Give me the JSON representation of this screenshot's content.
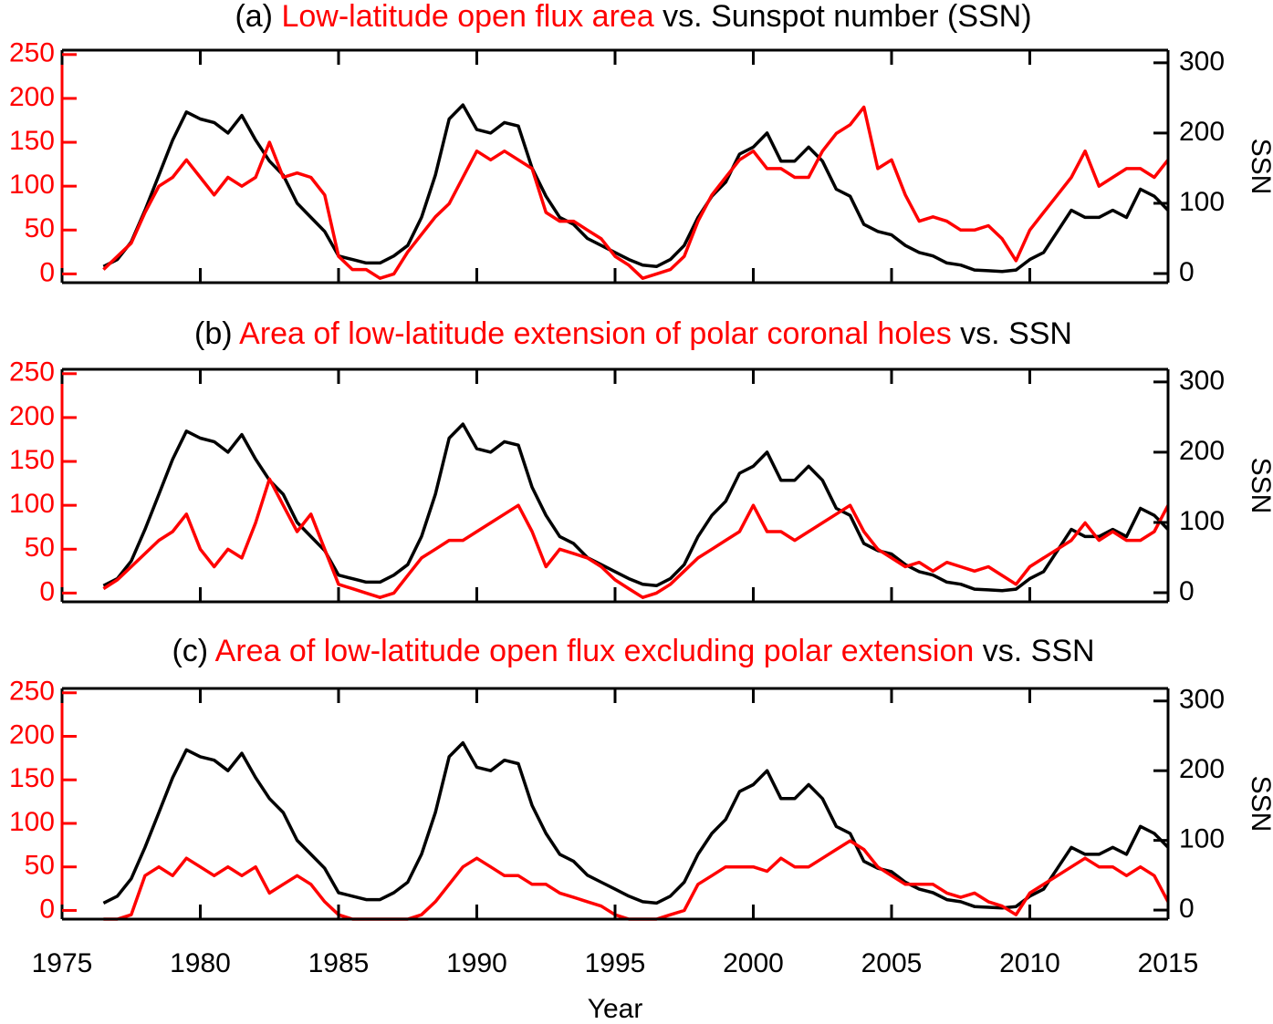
{
  "chart_data": [
    {
      "type": "line",
      "title": [
        {
          "text": "(a)",
          "color": "#000000"
        },
        {
          "text": "Low-latitude open flux area",
          "color": "#ff0000"
        },
        {
          "text": "vs. Sunspot number (SSN)",
          "color": "#000000"
        }
      ],
      "y2label": "SSN",
      "x": [
        1976.5,
        1977,
        1977.5,
        1978,
        1978.5,
        1979,
        1979.5,
        1980,
        1980.5,
        1981,
        1981.5,
        1982,
        1982.5,
        1983,
        1983.5,
        1984,
        1984.5,
        1985,
        1985.5,
        1986,
        1986.5,
        1987,
        1987.5,
        1988,
        1988.5,
        1989,
        1989.5,
        1990,
        1990.5,
        1991,
        1991.5,
        1992,
        1992.5,
        1993,
        1993.5,
        1994,
        1994.5,
        1995,
        1995.5,
        1996,
        1996.5,
        1997,
        1997.5,
        1998,
        1998.5,
        1999,
        1999.5,
        2000,
        2000.5,
        2001,
        2001.5,
        2002,
        2002.5,
        2003,
        2003.5,
        2004,
        2004.5,
        2005,
        2005.5,
        2006,
        2006.5,
        2007,
        2007.5,
        2008,
        2008.5,
        2009,
        2009.5,
        2010,
        2010.5,
        2011,
        2011.5,
        2012,
        2012.5,
        2013,
        2013.5,
        2014,
        2014.5,
        2015
      ],
      "series": [
        {
          "color": "#000000",
          "axis": "y2",
          "values": [
            10,
            20,
            45,
            90,
            140,
            190,
            230,
            220,
            215,
            200,
            225,
            190,
            160,
            140,
            100,
            80,
            60,
            25,
            20,
            15,
            15,
            25,
            40,
            80,
            140,
            220,
            240,
            205,
            200,
            215,
            210,
            150,
            110,
            80,
            70,
            50,
            40,
            30,
            20,
            12,
            10,
            20,
            40,
            80,
            110,
            130,
            170,
            180,
            200,
            160,
            160,
            180,
            160,
            120,
            110,
            70,
            60,
            55,
            40,
            30,
            25,
            15,
            12,
            5,
            4,
            3,
            5,
            20,
            30,
            60,
            90,
            80,
            80,
            90,
            80,
            120,
            110,
            90
          ]
        },
        {
          "color": "#ff0000",
          "axis": "y",
          "values": [
            5,
            20,
            35,
            70,
            100,
            110,
            130,
            110,
            90,
            110,
            100,
            110,
            150,
            110,
            115,
            110,
            90,
            20,
            5,
            5,
            -5,
            0,
            25,
            45,
            65,
            80,
            110,
            140,
            130,
            140,
            130,
            120,
            70,
            60,
            60,
            50,
            40,
            20,
            10,
            -5,
            0,
            5,
            20,
            60,
            90,
            110,
            130,
            140,
            120,
            120,
            110,
            110,
            140,
            160,
            170,
            190,
            120,
            130,
            90,
            60,
            65,
            60,
            50,
            50,
            55,
            40,
            15,
            50,
            70,
            90,
            110,
            140,
            100,
            110,
            120,
            120,
            110,
            130
          ]
        }
      ],
      "xlim": [
        1975,
        2015
      ],
      "xticks": [
        1975,
        1980,
        1985,
        1990,
        1995,
        2000,
        2005,
        2010,
        2015
      ],
      "ylim": [
        -10,
        255
      ],
      "yticks": [
        0,
        50,
        100,
        150,
        200,
        250
      ],
      "ycolor": "#ff0000",
      "y2lim": [
        -13,
        318
      ],
      "y2ticks": [
        0,
        100,
        200,
        300
      ]
    },
    {
      "type": "line",
      "title": [
        {
          "text": "(b)",
          "color": "#000000"
        },
        {
          "text": "Area of low-latitude extension of polar coronal holes",
          "color": "#ff0000"
        },
        {
          "text": "vs. SSN",
          "color": "#000000"
        }
      ],
      "y2label": "SSN",
      "x": [
        1976.5,
        1977,
        1977.5,
        1978,
        1978.5,
        1979,
        1979.5,
        1980,
        1980.5,
        1981,
        1981.5,
        1982,
        1982.5,
        1983,
        1983.5,
        1984,
        1984.5,
        1985,
        1985.5,
        1986,
        1986.5,
        1987,
        1987.5,
        1988,
        1988.5,
        1989,
        1989.5,
        1990,
        1990.5,
        1991,
        1991.5,
        1992,
        1992.5,
        1993,
        1993.5,
        1994,
        1994.5,
        1995,
        1995.5,
        1996,
        1996.5,
        1997,
        1997.5,
        1998,
        1998.5,
        1999,
        1999.5,
        2000,
        2000.5,
        2001,
        2001.5,
        2002,
        2002.5,
        2003,
        2003.5,
        2004,
        2004.5,
        2005,
        2005.5,
        2006,
        2006.5,
        2007,
        2007.5,
        2008,
        2008.5,
        2009,
        2009.5,
        2010,
        2010.5,
        2011,
        2011.5,
        2012,
        2012.5,
        2013,
        2013.5,
        2014,
        2014.5,
        2015
      ],
      "series": [
        {
          "color": "#000000",
          "axis": "y2",
          "values": [
            10,
            20,
            45,
            90,
            140,
            190,
            230,
            220,
            215,
            200,
            225,
            190,
            160,
            140,
            100,
            80,
            60,
            25,
            20,
            15,
            15,
            25,
            40,
            80,
            140,
            220,
            240,
            205,
            200,
            215,
            210,
            150,
            110,
            80,
            70,
            50,
            40,
            30,
            20,
            12,
            10,
            20,
            40,
            80,
            110,
            130,
            170,
            180,
            200,
            160,
            160,
            180,
            160,
            120,
            110,
            70,
            60,
            55,
            40,
            30,
            25,
            15,
            12,
            5,
            4,
            3,
            5,
            20,
            30,
            60,
            90,
            80,
            80,
            90,
            80,
            120,
            110,
            90
          ]
        },
        {
          "color": "#ff0000",
          "axis": "y",
          "values": [
            5,
            15,
            30,
            45,
            60,
            70,
            90,
            50,
            30,
            50,
            40,
            80,
            130,
            100,
            70,
            90,
            50,
            10,
            5,
            0,
            -5,
            0,
            20,
            40,
            50,
            60,
            60,
            70,
            80,
            90,
            100,
            70,
            30,
            50,
            45,
            40,
            30,
            15,
            5,
            -5,
            0,
            10,
            25,
            40,
            50,
            60,
            70,
            100,
            70,
            70,
            60,
            70,
            80,
            90,
            100,
            70,
            50,
            40,
            30,
            35,
            25,
            35,
            30,
            25,
            30,
            20,
            10,
            30,
            40,
            50,
            60,
            80,
            60,
            70,
            60,
            60,
            70,
            100
          ]
        }
      ],
      "xlim": [
        1975,
        2015
      ],
      "xticks": [
        1975,
        1980,
        1985,
        1990,
        1995,
        2000,
        2005,
        2010,
        2015
      ],
      "ylim": [
        -10,
        255
      ],
      "yticks": [
        0,
        50,
        100,
        150,
        200,
        250
      ],
      "ycolor": "#ff0000",
      "y2lim": [
        -13,
        318
      ],
      "y2ticks": [
        0,
        100,
        200,
        300
      ]
    },
    {
      "type": "line",
      "title": [
        {
          "text": "(c)",
          "color": "#000000"
        },
        {
          "text": "Area of low-latitude open flux excluding polar extension",
          "color": "#ff0000"
        },
        {
          "text": "vs. SSN",
          "color": "#000000"
        }
      ],
      "y2label": "SSN",
      "xlabel": "Year",
      "x": [
        1976.5,
        1977,
        1977.5,
        1978,
        1978.5,
        1979,
        1979.5,
        1980,
        1980.5,
        1981,
        1981.5,
        1982,
        1982.5,
        1983,
        1983.5,
        1984,
        1984.5,
        1985,
        1985.5,
        1986,
        1986.5,
        1987,
        1987.5,
        1988,
        1988.5,
        1989,
        1989.5,
        1990,
        1990.5,
        1991,
        1991.5,
        1992,
        1992.5,
        1993,
        1993.5,
        1994,
        1994.5,
        1995,
        1995.5,
        1996,
        1996.5,
        1997,
        1997.5,
        1998,
        1998.5,
        1999,
        1999.5,
        2000,
        2000.5,
        2001,
        2001.5,
        2002,
        2002.5,
        2003,
        2003.5,
        2004,
        2004.5,
        2005,
        2005.5,
        2006,
        2006.5,
        2007,
        2007.5,
        2008,
        2008.5,
        2009,
        2009.5,
        2010,
        2010.5,
        2011,
        2011.5,
        2012,
        2012.5,
        2013,
        2013.5,
        2014,
        2014.5,
        2015
      ],
      "series": [
        {
          "color": "#000000",
          "axis": "y2",
          "values": [
            10,
            20,
            45,
            90,
            140,
            190,
            230,
            220,
            215,
            200,
            225,
            190,
            160,
            140,
            100,
            80,
            60,
            25,
            20,
            15,
            15,
            25,
            40,
            80,
            140,
            220,
            240,
            205,
            200,
            215,
            210,
            150,
            110,
            80,
            70,
            50,
            40,
            30,
            20,
            12,
            10,
            20,
            40,
            80,
            110,
            130,
            170,
            180,
            200,
            160,
            160,
            180,
            160,
            120,
            110,
            70,
            60,
            55,
            40,
            30,
            25,
            15,
            12,
            5,
            4,
            3,
            5,
            20,
            30,
            60,
            90,
            80,
            80,
            90,
            80,
            120,
            110,
            90
          ]
        },
        {
          "color": "#ff0000",
          "axis": "y",
          "values": [
            -10,
            -10,
            -5,
            40,
            50,
            40,
            60,
            50,
            40,
            50,
            40,
            50,
            20,
            30,
            40,
            30,
            10,
            -5,
            -10,
            -10,
            -10,
            -10,
            -10,
            -5,
            10,
            30,
            50,
            60,
            50,
            40,
            40,
            30,
            30,
            20,
            15,
            10,
            5,
            -5,
            -10,
            -10,
            -10,
            -5,
            0,
            30,
            40,
            50,
            50,
            50,
            45,
            60,
            50,
            50,
            60,
            70,
            80,
            70,
            50,
            40,
            30,
            30,
            30,
            20,
            15,
            20,
            10,
            5,
            -5,
            20,
            30,
            40,
            50,
            60,
            50,
            50,
            40,
            50,
            40,
            10
          ]
        }
      ],
      "xlim": [
        1975,
        2015
      ],
      "xticks": [
        1975,
        1980,
        1985,
        1990,
        1995,
        2000,
        2005,
        2010,
        2015
      ],
      "xtick_labels": true,
      "ylim": [
        -10,
        255
      ],
      "yticks": [
        0,
        50,
        100,
        150,
        200,
        250
      ],
      "ycolor": "#ff0000",
      "y2lim": [
        -13,
        318
      ],
      "y2ticks": [
        0,
        100,
        200,
        300
      ]
    }
  ]
}
